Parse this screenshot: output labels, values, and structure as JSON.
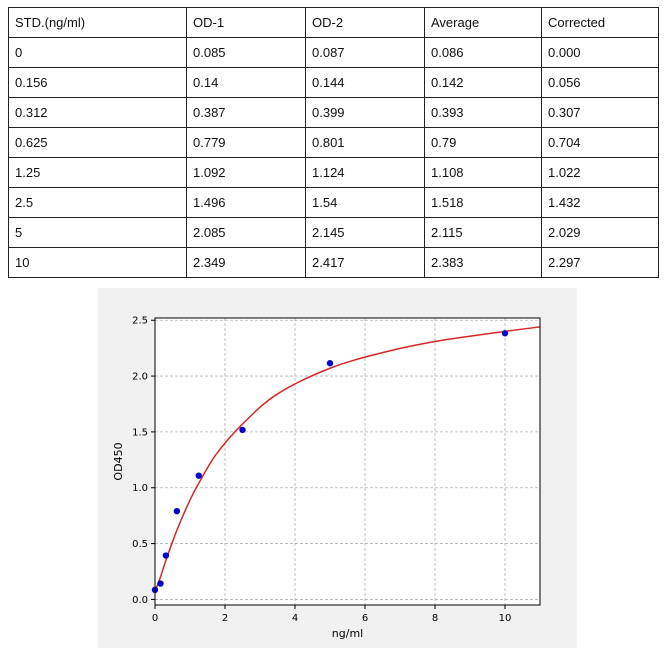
{
  "table": {
    "headers": [
      "STD.(ng/ml)",
      "OD-1",
      "OD-2",
      "Average",
      "Corrected"
    ],
    "rows": [
      [
        "0",
        "0.085",
        "0.087",
        "0.086",
        "0.000"
      ],
      [
        "0.156",
        "0.14",
        "0.144",
        "0.142",
        "0.056"
      ],
      [
        "0.312",
        "0.387",
        "0.399",
        "0.393",
        "0.307"
      ],
      [
        "0.625",
        "0.779",
        "0.801",
        "0.79",
        "0.704"
      ],
      [
        "1.25",
        "1.092",
        "1.124",
        "1.108",
        "1.022"
      ],
      [
        "2.5",
        "1.496",
        "1.54",
        "1.518",
        "1.432"
      ],
      [
        "5",
        "2.085",
        "2.145",
        "2.115",
        "2.029"
      ],
      [
        "10",
        "2.349",
        "2.417",
        "2.383",
        "2.297"
      ]
    ]
  },
  "chart_data": {
    "type": "scatter",
    "xlabel": "ng/ml",
    "ylabel": "OD450",
    "xlim": [
      0,
      11
    ],
    "ylim": [
      -0.05,
      2.52
    ],
    "xticks": [
      0,
      2,
      4,
      6,
      8,
      10
    ],
    "xtick_labels": [
      "0",
      "2",
      "4",
      "6",
      "8",
      "10"
    ],
    "yticks": [
      0.0,
      0.5,
      1.0,
      1.5,
      2.0,
      2.5
    ],
    "ytick_labels": [
      "0.0",
      "0.5",
      "1.0",
      "1.5",
      "2.0",
      "2.5"
    ],
    "grid": true,
    "points": {
      "x": [
        0,
        0.156,
        0.312,
        0.625,
        1.25,
        2.5,
        5,
        10
      ],
      "y": [
        0.086,
        0.142,
        0.393,
        0.79,
        1.108,
        1.518,
        2.115,
        2.383
      ]
    },
    "curve": {
      "x": [
        0,
        0.156,
        0.312,
        0.625,
        1.0,
        1.25,
        1.75,
        2.5,
        3.5,
        5,
        6.5,
        8,
        10,
        11
      ],
      "y": [
        0.07,
        0.2,
        0.35,
        0.62,
        0.89,
        1.04,
        1.3,
        1.57,
        1.84,
        2.07,
        2.21,
        2.31,
        2.4,
        2.44
      ]
    },
    "colors": {
      "points": "#0000cc",
      "curve": "#d62728",
      "grid": "#b0b0b0",
      "panel": "#f1f1f1"
    }
  }
}
